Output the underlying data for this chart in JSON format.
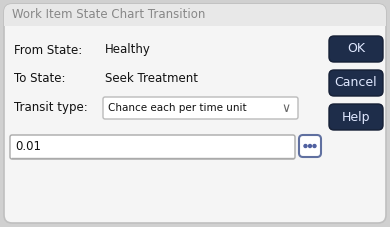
{
  "title": "Work Item State Chart Transition",
  "bg_outer": "#d0d0d0",
  "dialog_bg": "#f5f5f5",
  "title_bg": "#e8e8e8",
  "border_color": "#c0c0c0",
  "label1": "From State:",
  "value1": "Healthy",
  "label2": "To State:",
  "value2": "Seek Treatment",
  "label3": "Transit type:",
  "dropdown_text": "Chance each per time unit",
  "input_value": "0.01",
  "btn_ok": "OK",
  "btn_cancel": "Cancel",
  "btn_help": "Help",
  "btn_bg": "#1e2d4a",
  "btn_text_color": "#e0e8ff",
  "btn_border": "#151f35",
  "title_color": "#888888",
  "label_color": "#111111",
  "dropdown_border": "#bbbbbb",
  "input_border": "#aaaaaa",
  "ellipsis_border": "#6070a0",
  "ellipsis_dot_color": "#5060a0",
  "white": "#ffffff"
}
